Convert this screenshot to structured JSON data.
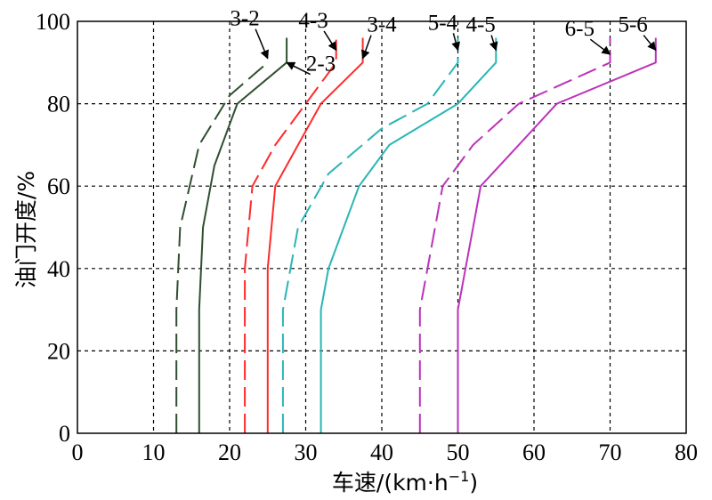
{
  "chart_data": {
    "type": "line",
    "xlabel_main": "车速/(km·h",
    "xlabel_sup": "−1",
    "xlabel_close": ")",
    "ylabel": "油门开度/%",
    "xlim": [
      0,
      80
    ],
    "ylim": [
      0,
      100
    ],
    "xticks": [
      "0",
      "10",
      "20",
      "30",
      "40",
      "50",
      "60",
      "70",
      "80"
    ],
    "yticks": [
      "0",
      "20",
      "40",
      "60",
      "80",
      "100"
    ],
    "grid": true,
    "series": [
      {
        "name": "3-2",
        "color": "#2f4f2f",
        "dashed": true,
        "points": [
          [
            13,
            0
          ],
          [
            13,
            30
          ],
          [
            13.5,
            50
          ],
          [
            16,
            70
          ],
          [
            20,
            82
          ],
          [
            25,
            90
          ]
        ]
      },
      {
        "name": "2-3",
        "color": "#2f4f2f",
        "dashed": false,
        "points": [
          [
            16,
            0
          ],
          [
            16,
            30
          ],
          [
            16.5,
            50
          ],
          [
            18,
            65
          ],
          [
            21,
            80
          ],
          [
            27.5,
            90
          ],
          [
            27.5,
            96
          ]
        ]
      },
      {
        "name": "4-3",
        "color": "#ff2a2a",
        "dashed": true,
        "points": [
          [
            22,
            0
          ],
          [
            22,
            40
          ],
          [
            23,
            60
          ],
          [
            26,
            70
          ],
          [
            30,
            80
          ],
          [
            34,
            90
          ],
          [
            34,
            96
          ]
        ]
      },
      {
        "name": "3-4",
        "color": "#ff2a2a",
        "dashed": false,
        "points": [
          [
            25,
            0
          ],
          [
            25,
            40
          ],
          [
            26,
            60
          ],
          [
            29,
            70
          ],
          [
            32,
            80
          ],
          [
            37.5,
            90
          ],
          [
            37.5,
            96
          ]
        ]
      },
      {
        "name": "5-4",
        "color": "#2ab5b5",
        "dashed": true,
        "points": [
          [
            27,
            0
          ],
          [
            27,
            30
          ],
          [
            29,
            50
          ],
          [
            33,
            63
          ],
          [
            40,
            74
          ],
          [
            46,
            80
          ],
          [
            50,
            90
          ],
          [
            50,
            96
          ]
        ]
      },
      {
        "name": "4-5",
        "color": "#2ab5b5",
        "dashed": false,
        "points": [
          [
            32,
            0
          ],
          [
            32,
            30
          ],
          [
            33,
            40
          ],
          [
            37,
            60
          ],
          [
            41,
            70
          ],
          [
            50,
            80
          ],
          [
            55,
            90
          ],
          [
            55,
            96
          ]
        ]
      },
      {
        "name": "6-5",
        "color": "#bb33bb",
        "dashed": true,
        "points": [
          [
            45,
            0
          ],
          [
            45,
            30
          ],
          [
            47,
            50
          ],
          [
            48,
            60
          ],
          [
            52,
            70
          ],
          [
            58,
            80
          ],
          [
            70,
            90
          ],
          [
            70,
            96
          ]
        ]
      },
      {
        "name": "5-6",
        "color": "#bb33bb",
        "dashed": false,
        "points": [
          [
            50,
            0
          ],
          [
            50,
            30
          ],
          [
            52,
            50
          ],
          [
            53,
            60
          ],
          [
            58,
            70
          ],
          [
            63,
            80
          ],
          [
            76,
            90
          ],
          [
            76,
            96
          ]
        ]
      }
    ],
    "annotations": [
      {
        "text": "3-2",
        "x": 22,
        "y": 99,
        "to": [
          25,
          91
        ]
      },
      {
        "text": "2-3",
        "x": 32,
        "y": 88,
        "to": [
          27.5,
          90
        ]
      },
      {
        "text": "4-3",
        "x": 31,
        "y": 98.5,
        "to": [
          34,
          93
        ]
      },
      {
        "text": "3-4",
        "x": 40,
        "y": 97.5,
        "to": [
          37.5,
          91
        ]
      },
      {
        "text": "5-4",
        "x": 48,
        "y": 98,
        "to": [
          50,
          93
        ]
      },
      {
        "text": "4-5",
        "x": 53,
        "y": 97.5,
        "to": [
          55,
          93
        ]
      },
      {
        "text": "6-5",
        "x": 66,
        "y": 96.5,
        "to": [
          70,
          92
        ]
      },
      {
        "text": "5-6",
        "x": 73,
        "y": 97.5,
        "to": [
          76,
          93
        ]
      }
    ]
  }
}
